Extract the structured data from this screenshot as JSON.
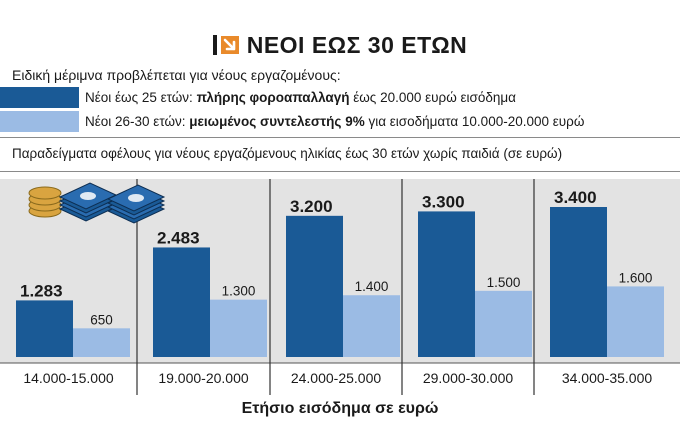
{
  "header": {
    "title": "ΝΕΟΙ ΕΩΣ 30 ΕΤΩΝ",
    "icon": "arrow-down-right-icon"
  },
  "intro": "Ειδική μέριμνα προβλέπεται για νέους εργαζομένους:",
  "legend": [
    {
      "pre": "Νέοι έως 25 ετών: ",
      "bold": "πλήρης φοροαπαλλαγή",
      "post": " έως 20.000 ευρώ εισόδημα",
      "color": "#1a5a96"
    },
    {
      "pre": "Νέοι 26-30 ετών: ",
      "bold": "μειωμένος συντελεστής 9%",
      "post": " για εισοδήματα 10.000-20.000 ευρώ",
      "color": "#9bbbe4"
    }
  ],
  "subtitle": "Παραδείγματα οφέλους για νέους εργαζόμενους ηλικίας έως 30 ετών χωρίς παιδιά (σε ευρώ)",
  "chart_data": {
    "type": "bar",
    "categories": [
      "14.000-15.000",
      "19.000-20.000",
      "24.000-25.000",
      "29.000-30.000",
      "34.000-35.000"
    ],
    "series": [
      {
        "values": [
          1283,
          2483,
          3200,
          3300,
          3400
        ],
        "labels": [
          "1.283",
          "2.483",
          "3.200",
          "3.300",
          "3.400"
        ],
        "color": "#1a5a96"
      },
      {
        "values": [
          650,
          1300,
          1400,
          1500,
          1600
        ],
        "labels": [
          "650",
          "1.300",
          "1.400",
          "1.500",
          "1.600"
        ],
        "color": "#9bbbe4"
      }
    ],
    "xlabel": "Ετήσιο εισόδημα σε ευρώ",
    "ylim": [
      0,
      3700
    ],
    "grid": false,
    "background": "#e3e3e3",
    "decoration": "coins-and-banknotes-icon"
  }
}
